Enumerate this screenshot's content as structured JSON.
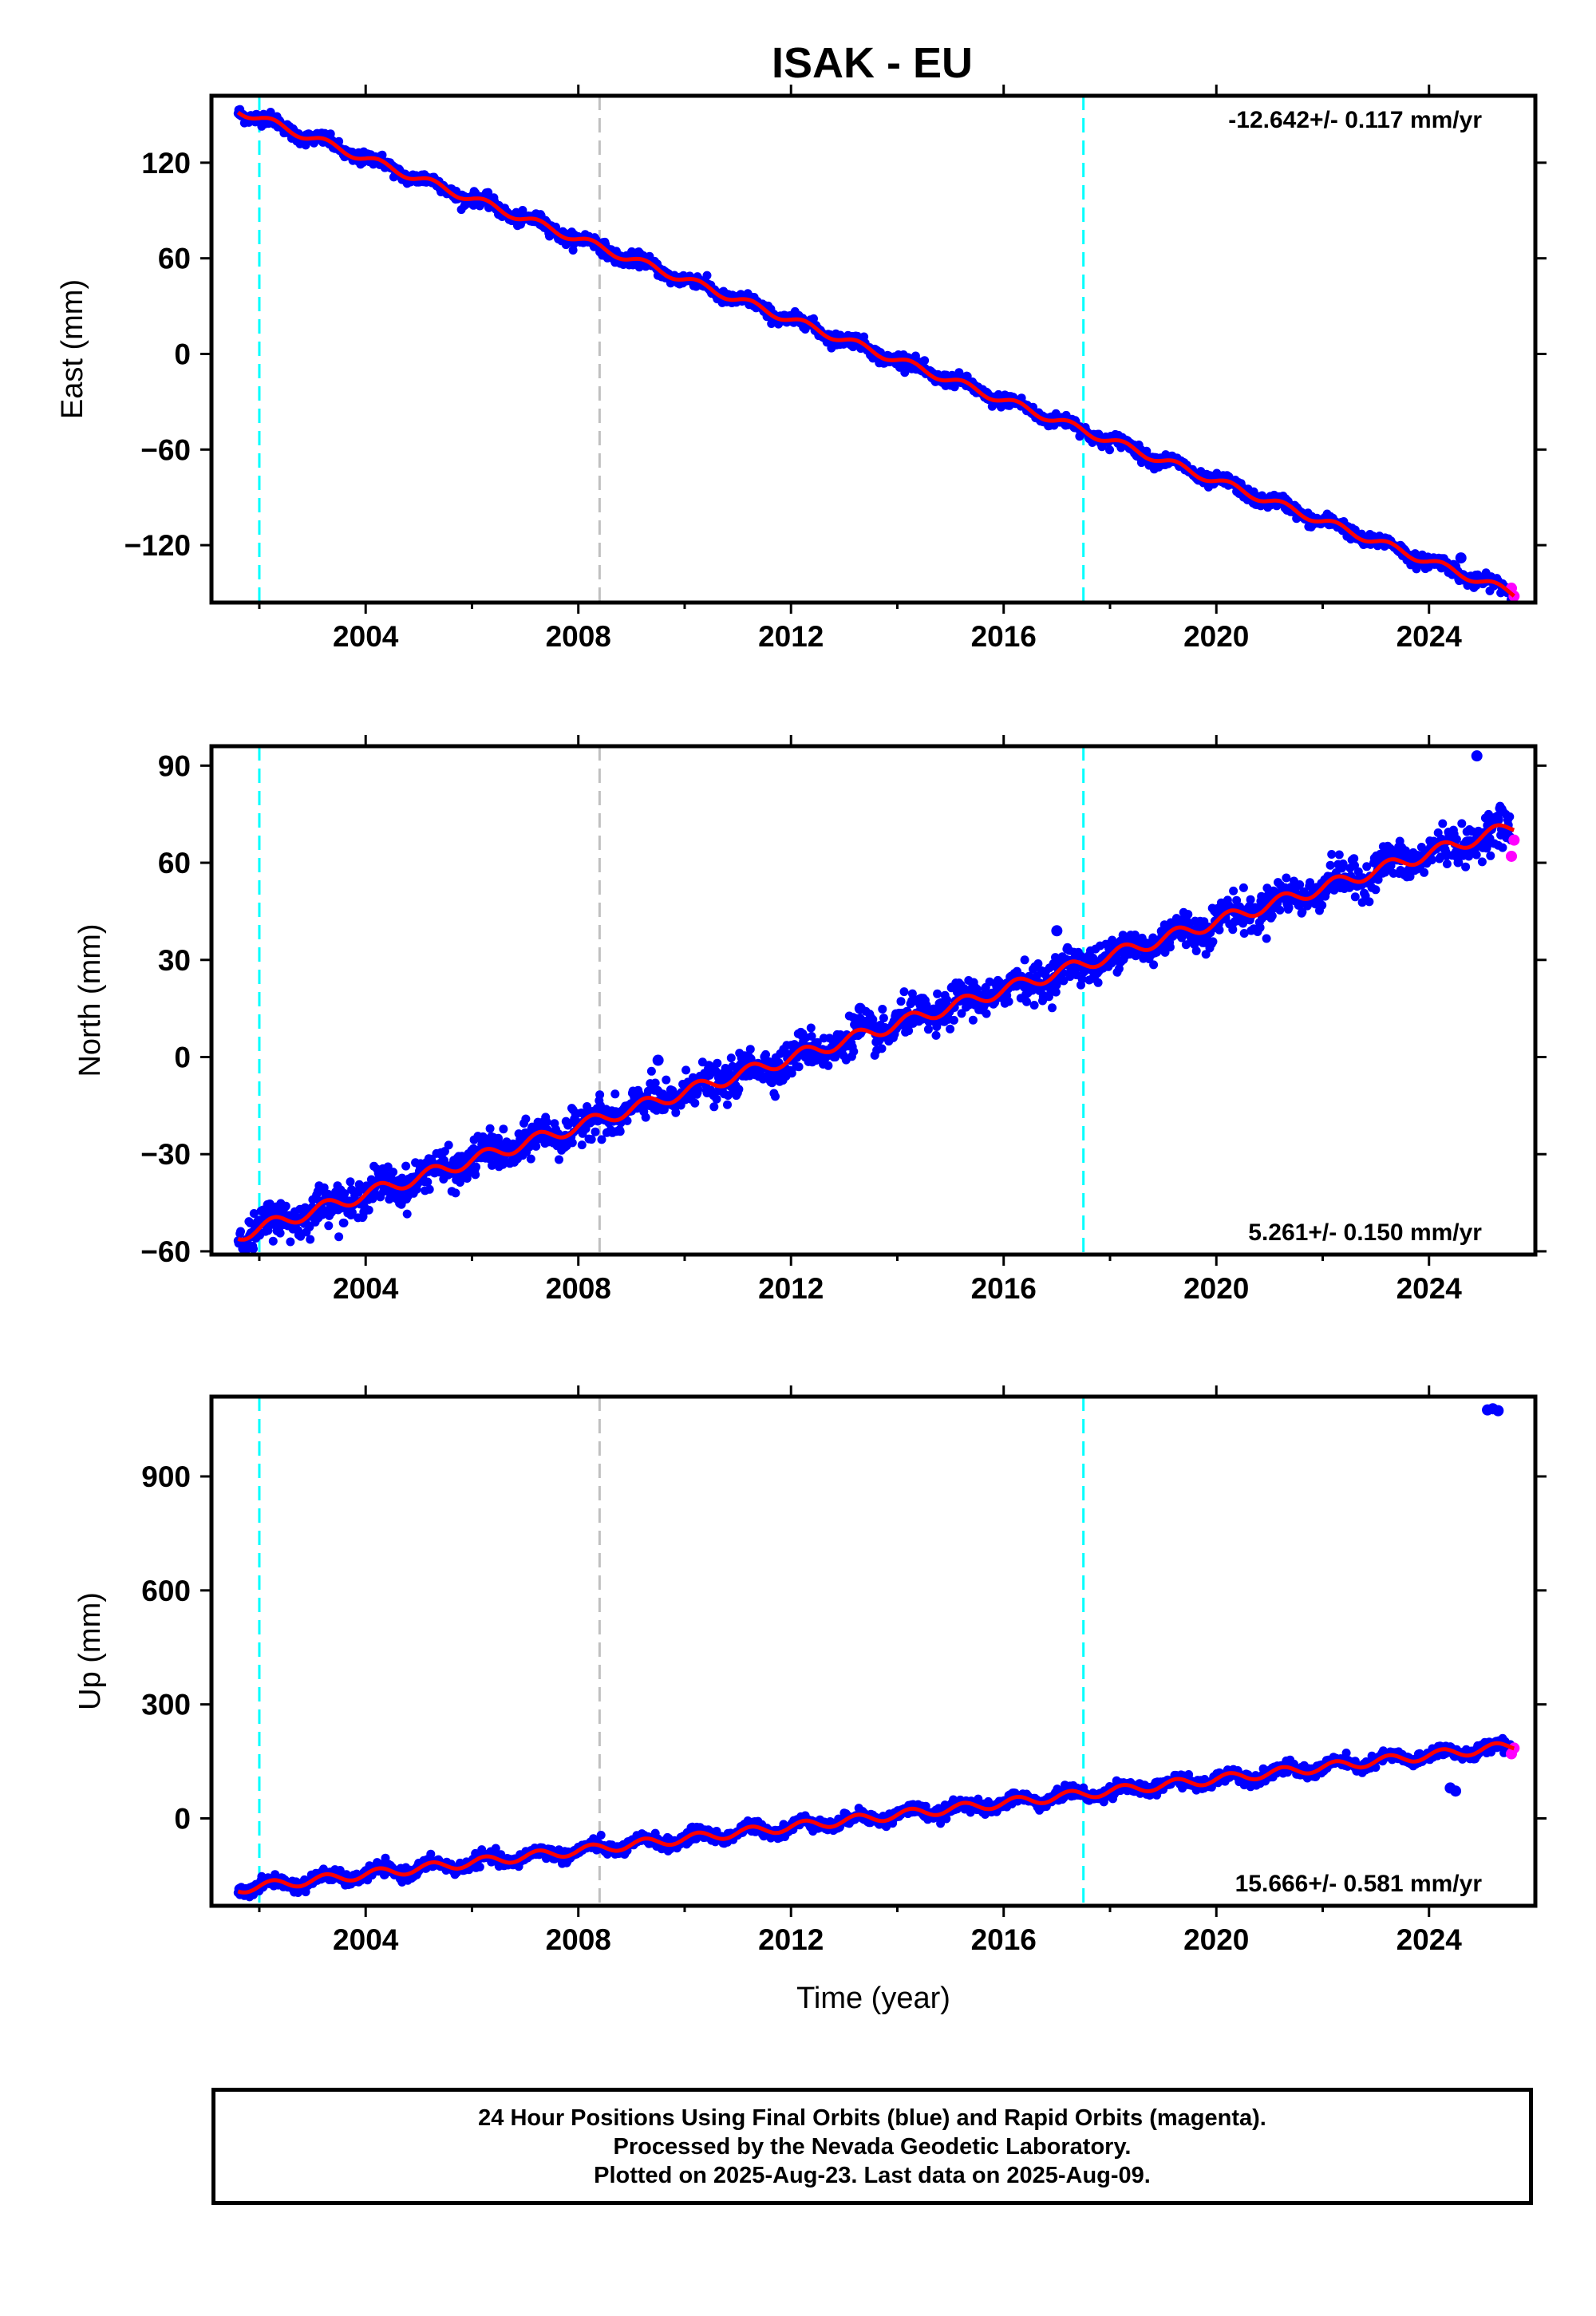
{
  "title": "ISAK - EU",
  "colors": {
    "final_orbits": "#0000ff",
    "rapid_orbits": "#ff00ff",
    "model": "#ff0000",
    "equipment_change": "#00ffff",
    "other_event": "#c0c0c0",
    "frame": "#000000"
  },
  "chart_data": [
    {
      "type": "scatter",
      "ylabel": "East (mm)",
      "xlabel": "",
      "xlim": [
        2001.1,
        2026.0
      ],
      "ylim": [
        -156,
        162
      ],
      "xticks": [
        2004,
        2008,
        2012,
        2016,
        2020,
        2024
      ],
      "xtick_labels": [
        "2004",
        "2008",
        "2012",
        "2016",
        "2020",
        "2024"
      ],
      "yticks": [
        120,
        60,
        0,
        -60,
        -120
      ],
      "ytick_labels": [
        "120",
        "60",
        "0",
        "−60",
        "−120"
      ],
      "rate_label": "-12.642+/- 0.117 mm/yr",
      "rate_position": "top-right",
      "trend": {
        "slope": -12.642,
        "start_year": 2001.6,
        "start_value": 153,
        "end_year": 2025.6
      },
      "seasonal_amplitude": 2.5,
      "scatter_sd": 2,
      "events": [
        {
          "year": 2002.0,
          "kind": "equipment_change"
        },
        {
          "year": 2008.4,
          "kind": "other_event"
        },
        {
          "year": 2017.5,
          "kind": "equipment_change"
        }
      ],
      "outliers": [
        {
          "year": 2024.6,
          "value": -128
        }
      ],
      "rapid_points": [
        {
          "year": 2025.55,
          "value": -147
        },
        {
          "year": 2025.6,
          "value": -152
        }
      ]
    },
    {
      "type": "scatter",
      "ylabel": "North (mm)",
      "xlabel": "",
      "xlim": [
        2001.1,
        2026.0
      ],
      "ylim": [
        -61,
        96
      ],
      "xticks": [
        2004,
        2008,
        2012,
        2016,
        2020,
        2024
      ],
      "xtick_labels": [
        "2004",
        "2008",
        "2012",
        "2016",
        "2020",
        "2024"
      ],
      "yticks": [
        90,
        60,
        30,
        0,
        -30,
        -60
      ],
      "ytick_labels": [
        "90",
        "60",
        "30",
        "0",
        "−30",
        "−60"
      ],
      "rate_label": "5.261+/- 0.150 mm/yr",
      "rate_position": "bottom-right",
      "trend": {
        "slope": 5.261,
        "start_year": 2001.6,
        "start_value": -55,
        "end_year": 2025.6
      },
      "seasonal_amplitude": 2,
      "scatter_sd": 2.8,
      "events": [
        {
          "year": 2002.0,
          "kind": "equipment_change"
        },
        {
          "year": 2008.4,
          "kind": "other_event"
        },
        {
          "year": 2017.5,
          "kind": "equipment_change"
        }
      ],
      "outliers": [
        {
          "year": 2024.9,
          "value": 93
        },
        {
          "year": 2017.0,
          "value": 39
        },
        {
          "year": 2013.3,
          "value": 15
        },
        {
          "year": 2009.5,
          "value": -1
        },
        {
          "year": 2021.0,
          "value": 50
        }
      ],
      "rapid_points": [
        {
          "year": 2025.55,
          "value": 62
        },
        {
          "year": 2025.6,
          "value": 67
        }
      ]
    },
    {
      "type": "scatter",
      "ylabel": "Up (mm)",
      "xlabel": "Time (year)",
      "xlim": [
        2001.1,
        2026.0
      ],
      "ylim": [
        -230,
        1110
      ],
      "xticks": [
        2004,
        2008,
        2012,
        2016,
        2020,
        2024
      ],
      "xtick_labels": [
        "2004",
        "2008",
        "2012",
        "2016",
        "2020",
        "2024"
      ],
      "yticks": [
        900,
        600,
        300,
        0
      ],
      "ytick_labels": [
        "900",
        "600",
        "300",
        "0"
      ],
      "rate_label": "15.666+/- 0.581 mm/yr",
      "rate_position": "bottom-right",
      "trend": {
        "slope": 15.666,
        "start_year": 2001.6,
        "start_value": -185,
        "end_year": 2025.6
      },
      "seasonal_amplitude": 12,
      "scatter_sd": 8,
      "events": [
        {
          "year": 2002.0,
          "kind": "equipment_change"
        },
        {
          "year": 2008.4,
          "kind": "other_event"
        },
        {
          "year": 2017.5,
          "kind": "equipment_change"
        }
      ],
      "outliers": [
        {
          "year": 2025.1,
          "value": 1075
        },
        {
          "year": 2025.2,
          "value": 1078
        },
        {
          "year": 2025.3,
          "value": 1073
        },
        {
          "year": 2024.4,
          "value": 80
        },
        {
          "year": 2024.5,
          "value": 72
        }
      ],
      "rapid_points": [
        {
          "year": 2025.55,
          "value": 170
        },
        {
          "year": 2025.6,
          "value": 185
        }
      ]
    }
  ],
  "footer": {
    "line1": "24 Hour Positions Using Final Orbits (blue) and Rapid Orbits (magenta).",
    "line2": "Processed by the Nevada Geodetic Laboratory.",
    "line3": "Plotted on 2025-Aug-23. Last data on 2025-Aug-09."
  }
}
